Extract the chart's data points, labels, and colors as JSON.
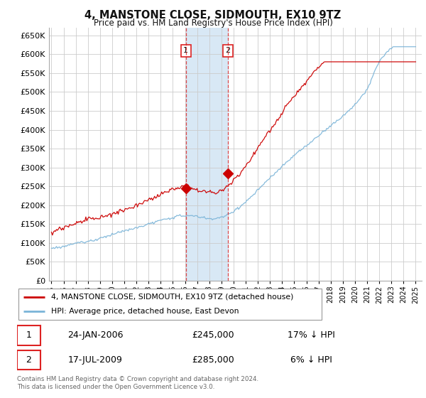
{
  "title": "4, MANSTONE CLOSE, SIDMOUTH, EX10 9TZ",
  "subtitle": "Price paid vs. HM Land Registry's House Price Index (HPI)",
  "legend_line1": "4, MANSTONE CLOSE, SIDMOUTH, EX10 9TZ (detached house)",
  "legend_line2": "HPI: Average price, detached house, East Devon",
  "sale1_date": "24-JAN-2006",
  "sale1_price": "£245,000",
  "sale1_hpi": "17% ↓ HPI",
  "sale2_date": "17-JUL-2009",
  "sale2_price": "£285,000",
  "sale2_hpi": "6% ↓ HPI",
  "footer": "Contains HM Land Registry data © Crown copyright and database right 2024.\nThis data is licensed under the Open Government Licence v3.0.",
  "hpi_color": "#7ab4d8",
  "price_color": "#cc0000",
  "vline_color": "#dd2222",
  "span_color": "#d8e8f5",
  "background_color": "#ffffff",
  "grid_color": "#cccccc",
  "ylim": [
    0,
    670000
  ],
  "yticks": [
    0,
    50000,
    100000,
    150000,
    200000,
    250000,
    300000,
    350000,
    400000,
    450000,
    500000,
    550000,
    600000,
    650000
  ],
  "sale1_x": 2006.07,
  "sale1_y": 245000,
  "sale2_x": 2009.54,
  "sale2_y": 285000,
  "xmin": 1994.8,
  "xmax": 2025.5
}
